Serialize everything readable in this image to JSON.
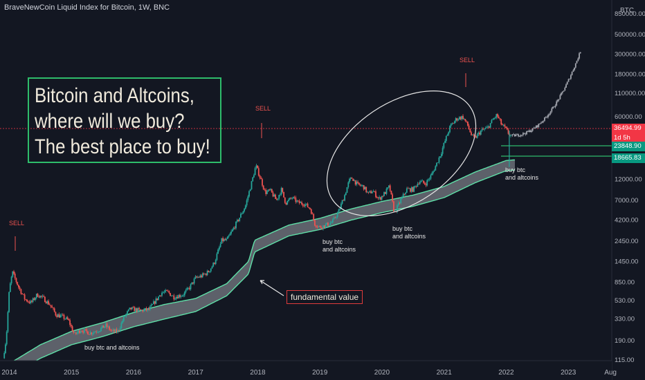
{
  "chart_title": "BraveNewCoin Liquid Index for Bitcoin, 1W, BNC",
  "currency": "BTC",
  "headline": [
    "Bitcoin and Altcoins,",
    "where will we buy?",
    "The best place to buy!"
  ],
  "annotations": {
    "fundamental_value": "fundamental value",
    "sell_label": "SELL",
    "buy_2015": "buy btc and altcoins",
    "buy_2019": [
      "buy btc",
      "and altcoins"
    ],
    "buy_2020": [
      "buy btc",
      "and altcoins"
    ],
    "buy_2022": [
      "buy btc",
      "and altcoins"
    ]
  },
  "price_tags": {
    "current": {
      "value": "36494.99",
      "color": "#f23645"
    },
    "countdown": {
      "value": "1d 5h",
      "color": "#f23645"
    },
    "band_upper": {
      "value": "23848.90",
      "color": "#089981"
    },
    "band_lower": {
      "value": "18665.83",
      "color": "#089981"
    }
  },
  "colors": {
    "up": "#26a69a",
    "down": "#ef5350",
    "projection": "#a3a6af",
    "band_fill": "#6b6f77",
    "band_line": "#5fe0a8",
    "box_border": "#2ebd6b"
  },
  "chart_data": {
    "type": "candlestick",
    "title": "BraveNewCoin Liquid Index for Bitcoin, 1W, BNC",
    "y_scale": "log",
    "ylim": [
      115,
      850000
    ],
    "yticks": [
      850000,
      500000,
      300000,
      180000,
      110000,
      60000,
      36494.99,
      23848.9,
      18665.83,
      12000,
      7000,
      4200,
      2450,
      1450,
      850,
      530,
      330,
      190,
      115
    ],
    "yticks_shown": [
      "850000.00",
      "500000.00",
      "300000.00",
      "180000.00",
      "110000.00",
      "60000.00",
      "12000.00",
      "7000.00",
      "4200.00",
      "2450.00",
      "1450.00",
      "850.00",
      "530.00",
      "330.00",
      "190.00",
      "115.00"
    ],
    "xticks": [
      "2014",
      "2015",
      "2016",
      "2017",
      "2018",
      "2019",
      "2020",
      "2021",
      "2022",
      "2023",
      "Aug"
    ],
    "x_range": [
      2013.85,
      2023.7
    ],
    "current_price": 36494.99,
    "price_path": [
      [
        2013.9,
        120
      ],
      [
        2013.95,
        200
      ],
      [
        2014.0,
        700
      ],
      [
        2014.05,
        1100
      ],
      [
        2014.15,
        750
      ],
      [
        2014.25,
        550
      ],
      [
        2014.35,
        500
      ],
      [
        2014.45,
        620
      ],
      [
        2014.55,
        560
      ],
      [
        2014.65,
        480
      ],
      [
        2014.75,
        370
      ],
      [
        2014.85,
        350
      ],
      [
        2014.95,
        320
      ],
      [
        2015.05,
        220
      ],
      [
        2015.15,
        250
      ],
      [
        2015.3,
        230
      ],
      [
        2015.45,
        250
      ],
      [
        2015.55,
        280
      ],
      [
        2015.65,
        240
      ],
      [
        2015.75,
        240
      ],
      [
        2015.85,
        350
      ],
      [
        2015.95,
        430
      ],
      [
        2016.1,
        410
      ],
      [
        2016.25,
        420
      ],
      [
        2016.45,
        650
      ],
      [
        2016.55,
        660
      ],
      [
        2016.65,
        580
      ],
      [
        2016.8,
        620
      ],
      [
        2016.9,
        740
      ],
      [
        2017.0,
        950
      ],
      [
        2017.1,
        1000
      ],
      [
        2017.2,
        1100
      ],
      [
        2017.3,
        1400
      ],
      [
        2017.42,
        2500
      ],
      [
        2017.5,
        2500
      ],
      [
        2017.6,
        3300
      ],
      [
        2017.7,
        4400
      ],
      [
        2017.8,
        6000
      ],
      [
        2017.9,
        11000
      ],
      [
        2017.97,
        17000
      ],
      [
        2018.05,
        12000
      ],
      [
        2018.12,
        8500
      ],
      [
        2018.2,
        9000
      ],
      [
        2018.3,
        7000
      ],
      [
        2018.38,
        9200
      ],
      [
        2018.45,
        6500
      ],
      [
        2018.55,
        7500
      ],
      [
        2018.65,
        6600
      ],
      [
        2018.75,
        6400
      ],
      [
        2018.85,
        5600
      ],
      [
        2018.92,
        3800
      ],
      [
        2019.0,
        3500
      ],
      [
        2019.1,
        3700
      ],
      [
        2019.2,
        4000
      ],
      [
        2019.3,
        5200
      ],
      [
        2019.4,
        8000
      ],
      [
        2019.47,
        11500
      ],
      [
        2019.52,
        12500
      ],
      [
        2019.6,
        10500
      ],
      [
        2019.7,
        10000
      ],
      [
        2019.78,
        8200
      ],
      [
        2019.85,
        9000
      ],
      [
        2019.95,
        7200
      ],
      [
        2020.05,
        8500
      ],
      [
        2020.12,
        10000
      ],
      [
        2020.2,
        5000
      ],
      [
        2020.3,
        7000
      ],
      [
        2020.4,
        9300
      ],
      [
        2020.5,
        9200
      ],
      [
        2020.6,
        11500
      ],
      [
        2020.7,
        10700
      ],
      [
        2020.8,
        13500
      ],
      [
        2020.88,
        18000
      ],
      [
        2020.95,
        23500
      ],
      [
        2021.02,
        33000
      ],
      [
        2021.1,
        47000
      ],
      [
        2021.2,
        57000
      ],
      [
        2021.3,
        60000
      ],
      [
        2021.38,
        48000
      ],
      [
        2021.45,
        36000
      ],
      [
        2021.5,
        35000
      ],
      [
        2021.6,
        42000
      ],
      [
        2021.7,
        45000
      ],
      [
        2021.78,
        55000
      ],
      [
        2021.85,
        63000
      ],
      [
        2021.92,
        50000
      ],
      [
        2022.0,
        43000
      ],
      [
        2022.05,
        38000
      ],
      [
        2022.08,
        37000
      ]
    ],
    "projection_end": [
      2023.2,
      330000
    ],
    "band": {
      "name": "fundamental value",
      "upper": [
        [
          2013.9,
          95
        ],
        [
          2014.5,
          170
        ],
        [
          2015.0,
          240
        ],
        [
          2015.5,
          300
        ],
        [
          2016.0,
          390
        ],
        [
          2016.5,
          480
        ],
        [
          2017.0,
          560
        ],
        [
          2017.5,
          820
        ],
        [
          2017.85,
          1450
        ],
        [
          2017.95,
          2500
        ],
        [
          2018.5,
          3700
        ],
        [
          2019.0,
          4400
        ],
        [
          2019.5,
          5600
        ],
        [
          2020.0,
          6800
        ],
        [
          2020.5,
          8000
        ],
        [
          2021.0,
          10000
        ],
        [
          2021.5,
          14500
        ],
        [
          2022.0,
          19500
        ],
        [
          2023.7,
          23848.9
        ]
      ],
      "lower": [
        [
          2013.9,
          70
        ],
        [
          2014.5,
          120
        ],
        [
          2015.0,
          170
        ],
        [
          2015.5,
          210
        ],
        [
          2016.0,
          270
        ],
        [
          2016.5,
          330
        ],
        [
          2017.0,
          400
        ],
        [
          2017.5,
          600
        ],
        [
          2017.85,
          1050
        ],
        [
          2017.95,
          1850
        ],
        [
          2018.5,
          2800
        ],
        [
          2019.0,
          3300
        ],
        [
          2019.5,
          4200
        ],
        [
          2020.0,
          5100
        ],
        [
          2020.5,
          6000
        ],
        [
          2021.0,
          7500
        ],
        [
          2021.5,
          11000
        ],
        [
          2022.0,
          15000
        ],
        [
          2023.7,
          18665.83
        ]
      ]
    }
  }
}
